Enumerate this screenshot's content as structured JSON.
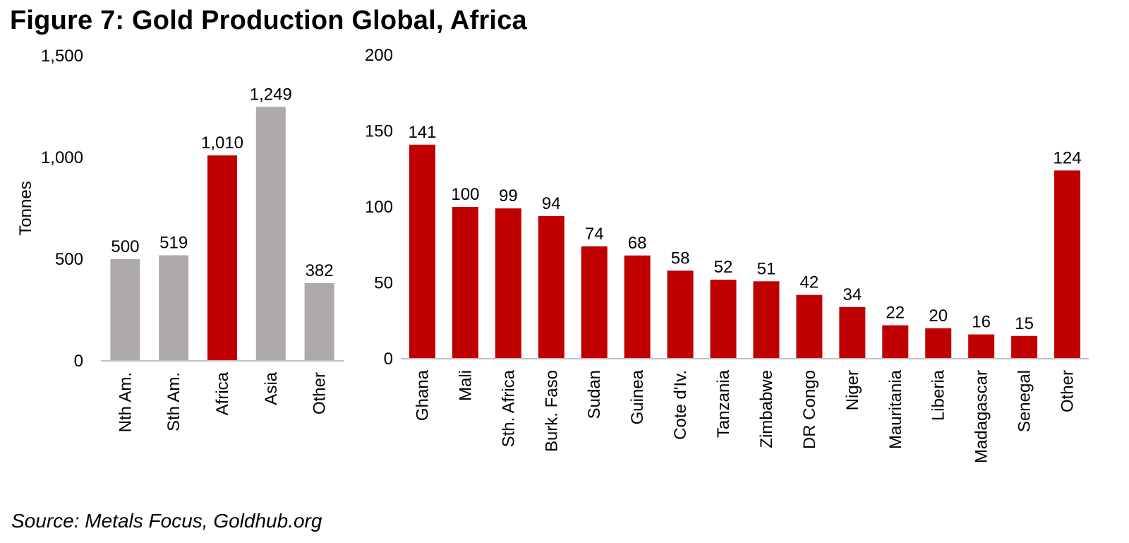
{
  "figure": {
    "title": "Figure 7: Gold Production Global, Africa",
    "source": "Source: Metals Focus, Goldhub.org"
  },
  "colors": {
    "grey": "#aeaaa9",
    "red": "#c00000",
    "axis": "#bfbfbf"
  },
  "chart_data": [
    {
      "type": "bar",
      "title": "",
      "xlabel": "",
      "ylabel": "Tonnes",
      "ylim": [
        0,
        1500
      ],
      "yticks": [
        0,
        500,
        1000,
        1500
      ],
      "ytick_labels": [
        "0",
        "500",
        "1,000",
        "1,500"
      ],
      "categories": [
        "Nth Am.",
        "Sth Am.",
        "Africa",
        "Asia",
        "Other"
      ],
      "values": [
        500,
        519,
        1010,
        1249,
        382
      ],
      "value_labels": [
        "500",
        "519",
        "1,010",
        "1,249",
        "382"
      ],
      "highlight": [
        "Africa"
      ]
    },
    {
      "type": "bar",
      "title": "",
      "xlabel": "",
      "ylabel": "",
      "ylim": [
        0,
        200
      ],
      "yticks": [
        0,
        50,
        100,
        150,
        200
      ],
      "ytick_labels": [
        "0",
        "50",
        "100",
        "150",
        "200"
      ],
      "categories": [
        "Ghana",
        "Mali",
        "Sth. Africa",
        "Burk. Faso",
        "Sudan",
        "Guinea",
        "Cote d'Iv.",
        "Tanzania",
        "Zimbabwe",
        "DR Congo",
        "Niger",
        "Mauritania",
        "Liberia",
        "Madagascar",
        "Senegal",
        "Other"
      ],
      "values": [
        141,
        100,
        99,
        94,
        74,
        68,
        58,
        52,
        51,
        42,
        34,
        22,
        20,
        16,
        15,
        124
      ],
      "value_labels": [
        "141",
        "100",
        "99",
        "94",
        "74",
        "68",
        "58",
        "52",
        "51",
        "42",
        "34",
        "22",
        "20",
        "16",
        "15",
        "124"
      ],
      "highlight": [
        "all"
      ]
    }
  ]
}
